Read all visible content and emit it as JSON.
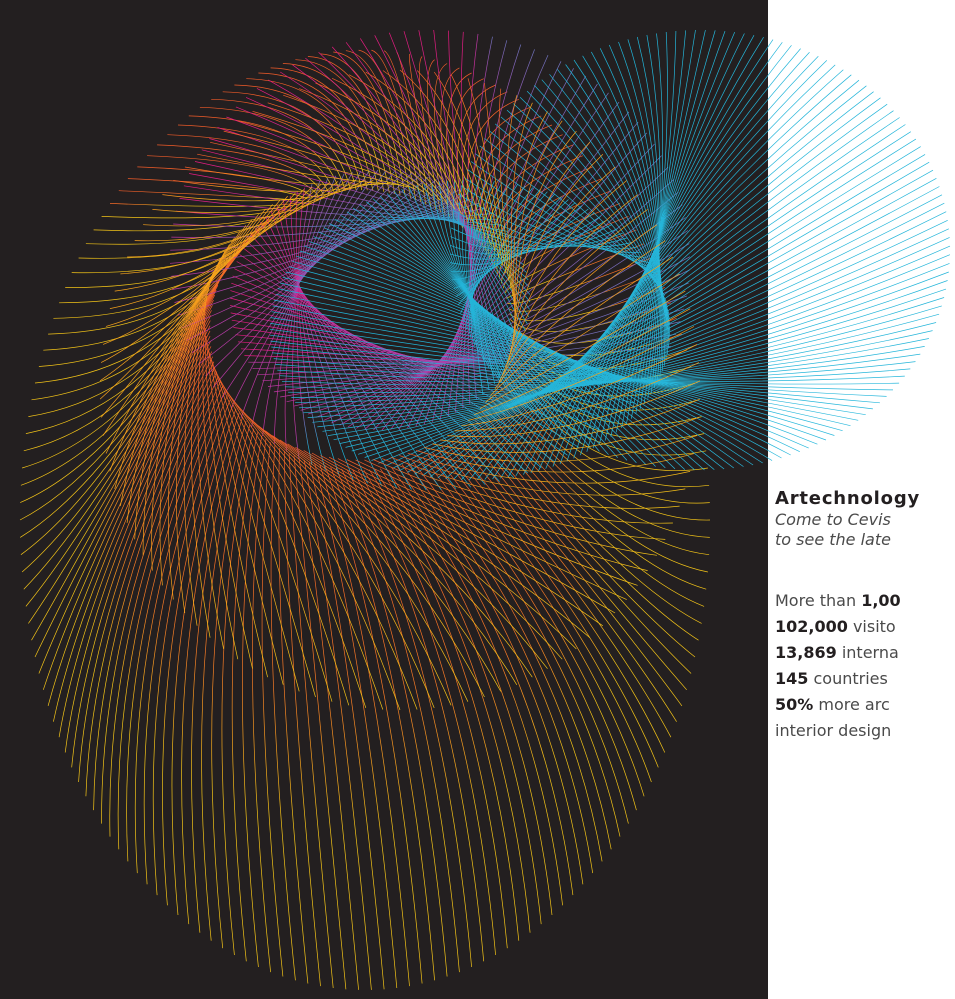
{
  "headline": "Artechnology",
  "tagline": {
    "line1": "Come to Cevis",
    "line2": "to see the late"
  },
  "stats": [
    {
      "value": "",
      "prefix": "More than ",
      "value_bold": "1,00",
      "suffix": ""
    },
    {
      "value_bold": "102,000",
      "suffix": " visito"
    },
    {
      "value_bold": "13,869",
      "suffix": " interna"
    },
    {
      "value_bold": "145",
      "suffix": " countries"
    },
    {
      "value_bold": "50%",
      "suffix": " more arc"
    },
    {
      "value_bold": "",
      "suffix": "interior design"
    }
  ],
  "colors": {
    "background_dark": "#231f20",
    "background_light": "#ffffff",
    "orange": "#f05a28",
    "magenta": "#e6197f",
    "yellow": "#f2c317",
    "cyan": "#1fb2d6"
  }
}
